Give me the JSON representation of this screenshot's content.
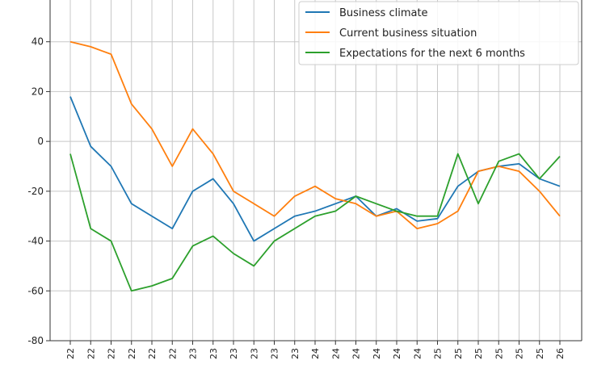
{
  "chart_data": {
    "type": "line",
    "grid": true,
    "legend_placement": "top-right",
    "ylim": [
      -80,
      60
    ],
    "yticks": [
      -80,
      -60,
      -40,
      -20,
      0,
      20,
      40,
      60
    ],
    "categories": [
      "22",
      "22",
      "22",
      "22",
      "22",
      "22",
      "23",
      "23",
      "23",
      "23",
      "23",
      "23",
      "24",
      "24",
      "24",
      "24",
      "24",
      "24",
      "25",
      "25",
      "25",
      "25",
      "25",
      "25",
      "26"
    ],
    "series": [
      {
        "name": "Business climate",
        "color": "#1f77b4",
        "values": [
          18,
          -2,
          -10,
          -25,
          -30,
          -35,
          -20,
          -15,
          -25,
          -40,
          -35,
          -30,
          -28,
          -25,
          -22,
          -30,
          -27,
          -32,
          -31,
          -18,
          -12,
          -10,
          -9,
          -15,
          -18
        ]
      },
      {
        "name": "Current business situation",
        "color": "#ff7f0e",
        "values": [
          40,
          38,
          35,
          15,
          5,
          -10,
          5,
          -5,
          -20,
          -25,
          -30,
          -22,
          -18,
          -23,
          -25,
          -30,
          -28,
          -35,
          -33,
          -28,
          -12,
          -10,
          -12,
          -20,
          -30
        ]
      },
      {
        "name": "Expectations for the next 6 months",
        "color": "#2ca02c",
        "values": [
          -5,
          -35,
          -40,
          -60,
          -58,
          -55,
          -42,
          -38,
          -45,
          -50,
          -40,
          -35,
          -30,
          -28,
          -22,
          -25,
          -28,
          -30,
          -30,
          -5,
          -25,
          -8,
          -5,
          -15,
          -6
        ]
      }
    ]
  }
}
